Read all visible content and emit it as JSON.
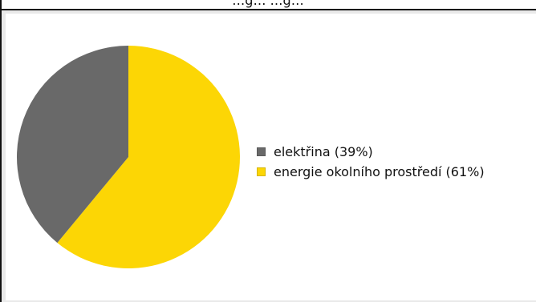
{
  "window": {
    "title": "…g… …g…"
  },
  "chart_data": {
    "type": "pie",
    "title": "",
    "slices": [
      {
        "label": "elektřina (39%)",
        "value": 39,
        "color": "#696969"
      },
      {
        "label": "energie okolního prostředí (61%)",
        "value": 61,
        "color": "#fcd605"
      }
    ],
    "start": "top",
    "direction": "clockwise",
    "legend_position": "right"
  }
}
